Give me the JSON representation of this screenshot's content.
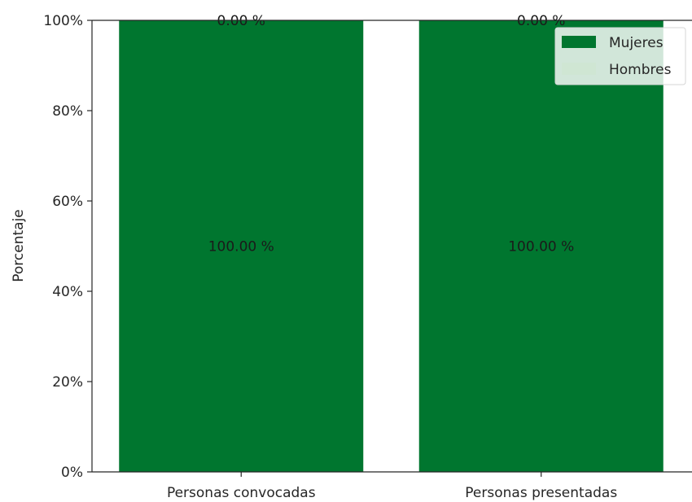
{
  "chart_data": {
    "type": "bar",
    "stacked": true,
    "normalized_percent": true,
    "categories": [
      "Personas convocadas",
      "Personas presentadas"
    ],
    "series": [
      {
        "name": "Mujeres",
        "values": [
          100.0,
          100.0
        ],
        "labels": [
          "100.00 %",
          "100.00 %"
        ],
        "color": "#00762f"
      },
      {
        "name": "Hombres",
        "values": [
          0.0,
          0.0
        ],
        "labels": [
          "0.00 %",
          "0.00 %"
        ],
        "color": "#cfe6d3"
      }
    ],
    "ylabel": "Porcentaje",
    "xlabel": "",
    "title": "",
    "ylim": [
      0,
      100
    ],
    "yticks": [
      "0%",
      "20%",
      "40%",
      "60%",
      "80%",
      "100%"
    ],
    "ytick_values": [
      0,
      20,
      40,
      60,
      80,
      100
    ],
    "grid": false,
    "legend_position": "top-right"
  }
}
